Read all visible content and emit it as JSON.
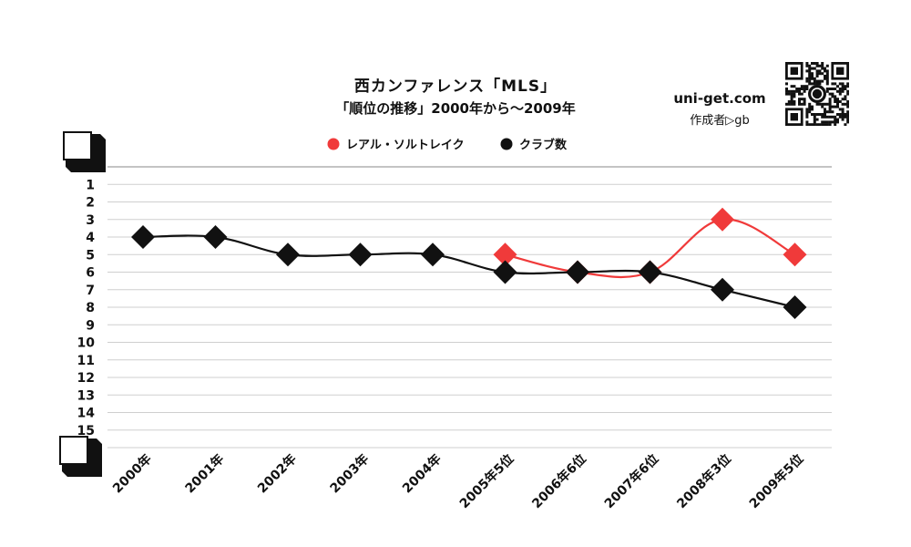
{
  "header": {
    "title": "西カンファレンス「MLS」",
    "subtitle": "「順位の推移」2000年から～2009年",
    "site": "uni-get.com",
    "author": "作成者▷gb",
    "qr_icon": "qr-code-icon"
  },
  "chart_data": {
    "type": "line",
    "categories": [
      "2000年",
      "2001年",
      "2002年",
      "2003年",
      "2004年",
      "2005年5位",
      "2006年6位",
      "2007年6位",
      "2008年3位",
      "2009年5位"
    ],
    "series": [
      {
        "name": "レアル・ソルトレイク",
        "color": "#f03a3a",
        "values": [
          null,
          null,
          null,
          null,
          null,
          5,
          6,
          6,
          3,
          5
        ]
      },
      {
        "name": "クラブ数",
        "color": "#111111",
        "values": [
          4,
          4,
          5,
          5,
          5,
          6,
          6,
          6,
          7,
          8
        ]
      }
    ],
    "y_ticks": [
      "1",
      "2",
      "3",
      "4",
      "5",
      "6",
      "7",
      "8",
      "9",
      "10",
      "11",
      "12",
      "13",
      "14",
      "15"
    ],
    "ylim": [
      0,
      16
    ],
    "y_reversed": true,
    "grid": true,
    "legend_position": "top"
  }
}
